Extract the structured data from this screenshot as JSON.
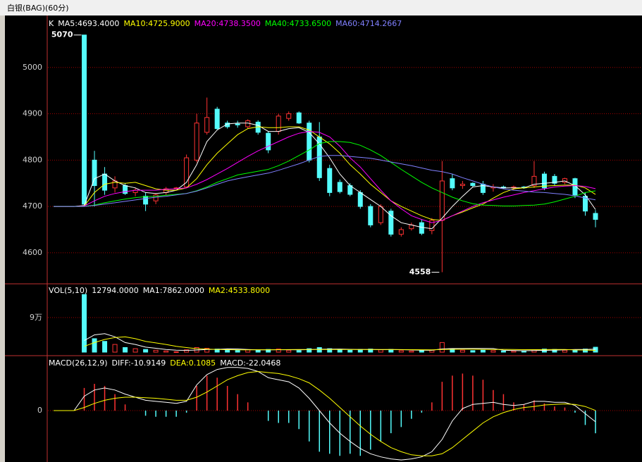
{
  "chart_data": {
    "type": "candlestick",
    "title": "白银(BAG)(60分)",
    "price": {
      "label": "K",
      "ylim": [
        4533,
        5103
      ],
      "yticks": [
        4600,
        4700,
        4800,
        4900,
        5000
      ],
      "grid": true,
      "up_color": "#ff3232",
      "down_color": "#54fcfc",
      "open": [
        null,
        null,
        null,
        5070,
        4800,
        4770,
        4740,
        4745,
        4730,
        4722,
        4712,
        4730,
        4740,
        4742,
        4800,
        4860,
        4910,
        4880,
        4878,
        4872,
        4882,
        4858,
        4862,
        4890,
        4902,
        4880,
        4850,
        4782,
        4752,
        4745,
        4730,
        4700,
        4665,
        4690,
        4640,
        4652,
        4665,
        4648,
        4670,
        4760,
        4745,
        4750,
        4748,
        4740,
        4742,
        4740,
        4742,
        4745,
        4770,
        4765,
        4752,
        4760,
        4722,
        4685
      ],
      "high": [
        null,
        null,
        null,
        5070,
        4820,
        4785,
        4765,
        4750,
        4740,
        4730,
        4728,
        4742,
        4742,
        4812,
        4900,
        4935,
        4915,
        4885,
        4885,
        4888,
        4886,
        4862,
        4900,
        4905,
        4905,
        4885,
        4882,
        4790,
        4758,
        4750,
        4735,
        4705,
        4705,
        4695,
        4655,
        4665,
        4672,
        4675,
        4798,
        4770,
        4755,
        4752,
        4755,
        4748,
        4745,
        4745,
        4744,
        4798,
        4775,
        4770,
        4762,
        4762,
        4730,
        4692
      ],
      "low": [
        null,
        null,
        null,
        4700,
        4700,
        4725,
        4730,
        4725,
        4722,
        4690,
        4705,
        4725,
        4738,
        4740,
        4795,
        4855,
        4865,
        4868,
        4870,
        4868,
        4855,
        4815,
        4855,
        4885,
        4878,
        4795,
        4755,
        4722,
        4728,
        4722,
        4695,
        4655,
        4660,
        4635,
        4635,
        4648,
        4638,
        4640,
        4558,
        4735,
        4738,
        4742,
        4725,
        4732,
        4738,
        4735,
        4738,
        4740,
        4735,
        4745,
        4748,
        4718,
        4680,
        4655
      ],
      "close": [
        null,
        null,
        null,
        4705,
        4745,
        4735,
        4755,
        4728,
        4735,
        4705,
        4725,
        4738,
        4740,
        4805,
        4880,
        4892,
        4868,
        4872,
        4876,
        4885,
        4860,
        4822,
        4895,
        4900,
        4880,
        4800,
        4762,
        4730,
        4732,
        4726,
        4700,
        4660,
        4700,
        4640,
        4650,
        4660,
        4642,
        4670,
        4755,
        4740,
        4748,
        4745,
        4730,
        4742,
        4740,
        4742,
        4740,
        4765,
        4740,
        4750,
        4760,
        4725,
        4690,
        4672
      ],
      "series": [
        {
          "name": "MA5:4693.4000",
          "color": "#ffffff",
          "values": [
            4700,
            4700,
            4700,
            4702,
            4760,
            4770,
            4755,
            4745,
            4740,
            4730,
            4728,
            4730,
            4735,
            4752,
            4790,
            4840,
            4865,
            4878,
            4880,
            4880,
            4875,
            4862,
            4862,
            4868,
            4870,
            4860,
            4835,
            4805,
            4770,
            4745,
            4730,
            4715,
            4700,
            4680,
            4665,
            4660,
            4655,
            4652,
            4675,
            4700,
            4722,
            4742,
            4745,
            4742,
            4740,
            4740,
            4740,
            4748,
            4750,
            4752,
            4755,
            4745,
            4725,
            4693.4
          ]
        },
        {
          "name": "MA10:4725.9000",
          "color": "#ffff00",
          "values": [
            4700,
            4700,
            4700,
            4701,
            4730,
            4748,
            4752,
            4750,
            4752,
            4745,
            4738,
            4735,
            4735,
            4740,
            4760,
            4790,
            4815,
            4835,
            4855,
            4868,
            4872,
            4870,
            4870,
            4872,
            4872,
            4865,
            4850,
            4835,
            4815,
            4790,
            4770,
            4748,
            4730,
            4712,
            4700,
            4690,
            4680,
            4672,
            4670,
            4680,
            4688,
            4697,
            4705,
            4718,
            4730,
            4738,
            4740,
            4742,
            4744,
            4745,
            4746,
            4746,
            4740,
            4725.9
          ]
        },
        {
          "name": "MA20:4738.3500",
          "color": "#ff00ff",
          "values": [
            4700,
            4700,
            4700,
            4701,
            4712,
            4722,
            4728,
            4732,
            4735,
            4735,
            4735,
            4737,
            4738,
            4740,
            4748,
            4758,
            4770,
            4782,
            4795,
            4808,
            4820,
            4830,
            4840,
            4850,
            4858,
            4862,
            4860,
            4850,
            4830,
            4805,
            4785,
            4760,
            4735,
            4712,
            4695,
            4680,
            4672,
            4665,
            4670,
            4680,
            4690,
            4700,
            4708,
            4714,
            4720,
            4725,
            4730,
            4734,
            4738,
            4742,
            4744,
            4745,
            4743,
            4738.35
          ]
        },
        {
          "name": "MA40:4733.6500",
          "color": "#00ff00",
          "values": [
            4700,
            4700,
            4700,
            4700,
            4703,
            4708,
            4712,
            4716,
            4719,
            4721,
            4722,
            4724,
            4726,
            4728,
            4734,
            4742,
            4752,
            4760,
            4768,
            4772,
            4776,
            4780,
            4788,
            4798,
            4810,
            4822,
            4836,
            4840,
            4840,
            4838,
            4832,
            4822,
            4810,
            4795,
            4780,
            4766,
            4752,
            4740,
            4730,
            4720,
            4712,
            4706,
            4703,
            4702,
            4701,
            4701,
            4702,
            4703,
            4705,
            4710,
            4716,
            4722,
            4730,
            4733.65
          ]
        },
        {
          "name": "MA60:4714.2667",
          "color": "#8080ff",
          "values": [
            4700,
            4700,
            4700,
            4700,
            4702,
            4705,
            4708,
            4711,
            4714,
            4717,
            4720,
            4722,
            4725,
            4728,
            4733,
            4740,
            4748,
            4755,
            4760,
            4764,
            4768,
            4772,
            4778,
            4785,
            4792,
            4800,
            4808,
            4810,
            4810,
            4808,
            4806,
            4804,
            4800,
            4796,
            4792,
            4788,
            4783,
            4778,
            4775,
            4770,
            4762,
            4755,
            4748,
            4742,
            4738,
            4735,
            4733,
            4731,
            4730,
            4728,
            4726,
            4723,
            4718,
            4714.2667
          ]
        }
      ]
    },
    "volume": {
      "title": "VOL(5,10)",
      "value_label": "12794.0000",
      "ylim": [
        0,
        165000
      ],
      "yticks": [
        {
          "value": 90000,
          "label": "9万"
        }
      ],
      "grid": true,
      "values": [
        null,
        null,
        null,
        150000,
        35000,
        28000,
        20000,
        12000,
        9000,
        7000,
        5000,
        3000,
        1000,
        6000,
        12000,
        10000,
        8000,
        6000,
        5000,
        6000,
        5000,
        7000,
        8000,
        5000,
        4000,
        9000,
        12000,
        9000,
        6000,
        5000,
        7000,
        8000,
        6000,
        7000,
        4000,
        3000,
        5000,
        5000,
        25000,
        9000,
        5000,
        4000,
        5000,
        4000,
        3000,
        3000,
        3000,
        6000,
        8000,
        7000,
        5000,
        6000,
        8000,
        12794
      ],
      "series": [
        {
          "name": "MA1:7862.0000",
          "color": "#ffffff",
          "values": [
            null,
            null,
            null,
            30000,
            45000,
            48000,
            40000,
            25000,
            20000,
            13000,
            10000,
            7000,
            5000,
            4500,
            5500,
            6800,
            7400,
            8400,
            8200,
            7000,
            6000,
            5800,
            6200,
            6400,
            5800,
            6600,
            7600,
            7800,
            8000,
            7400,
            6800,
            6800,
            6400,
            6600,
            6400,
            5600,
            5000,
            4800,
            8400,
            9400,
            9400,
            9600,
            9600,
            9400,
            5000,
            4200,
            3600,
            4200,
            4600,
            5400,
            5800,
            6800,
            6800,
            7862
          ]
        },
        {
          "name": "MA2:4533.8000",
          "color": "#ffff00",
          "values": [
            null,
            null,
            null,
            15000,
            25000,
            33000,
            38000,
            40000,
            35000,
            28000,
            24000,
            20000,
            15000,
            12000,
            9000,
            8000,
            7000,
            6500,
            6000,
            6000,
            6200,
            6300,
            6500,
            6600,
            6800,
            6800,
            6700,
            6800,
            6800,
            6700,
            6800,
            6900,
            6800,
            6700,
            6600,
            6400,
            6200,
            6000,
            7000,
            7400,
            7600,
            7500,
            7200,
            7000,
            7200,
            6800,
            6400,
            6400,
            6600,
            6800,
            7000,
            5600,
            5500,
            4533.8
          ]
        }
      ]
    },
    "macd": {
      "title": "MACD(26,12,9)",
      "ylim": [
        -50,
        50
      ],
      "yticks": [
        0
      ],
      "grid": true,
      "series": [
        {
          "name": "DIFF:-10.9149",
          "color": "#ffffff",
          "values": [
            0,
            0,
            0,
            14,
            20,
            22,
            20,
            16,
            13,
            10,
            9,
            8,
            7,
            9,
            25,
            35,
            40,
            42,
            42,
            41,
            38,
            32,
            30,
            28,
            22,
            12,
            0,
            -12,
            -22,
            -30,
            -37,
            -42,
            -45,
            -47,
            -48,
            -47,
            -45,
            -40,
            -28,
            -10,
            2,
            6,
            7,
            8,
            6,
            5,
            6,
            9,
            9,
            8,
            8,
            5,
            -3,
            -10.9149
          ]
        },
        {
          "name": "DEA:0.1085",
          "color": "#ffff00",
          "values": [
            0,
            0,
            0,
            3,
            7,
            10,
            12,
            13,
            13,
            12.5,
            12,
            11,
            10,
            10,
            13,
            18,
            24,
            30,
            34,
            37,
            38,
            37,
            36,
            34,
            31,
            27,
            20,
            12,
            3,
            -6,
            -15,
            -23,
            -30,
            -36,
            -40,
            -43,
            -44,
            -44,
            -42,
            -36,
            -28,
            -20,
            -12,
            -6,
            -2,
            1,
            3,
            4,
            5.5,
            6,
            6.5,
            6,
            4,
            0.1085
          ]
        }
      ],
      "histogram": {
        "name": "MACD:-22.0468",
        "up_color": "#ff3232",
        "down_color": "#54fcfc",
        "values": [
          0,
          0,
          0,
          22,
          26,
          24,
          16,
          6,
          0,
          -5,
          -6,
          -6,
          -6,
          -2,
          24,
          34,
          32,
          24,
          16,
          8,
          0,
          -10,
          -12,
          -12,
          -18,
          -30,
          -40,
          -42,
          -44,
          -42,
          -44,
          -38,
          -30,
          -22,
          -16,
          -8,
          -2,
          8,
          28,
          34,
          36,
          34,
          30,
          20,
          16,
          8,
          6,
          10,
          7,
          4,
          3,
          -2,
          -14,
          -22.0468
        ]
      }
    }
  }
}
